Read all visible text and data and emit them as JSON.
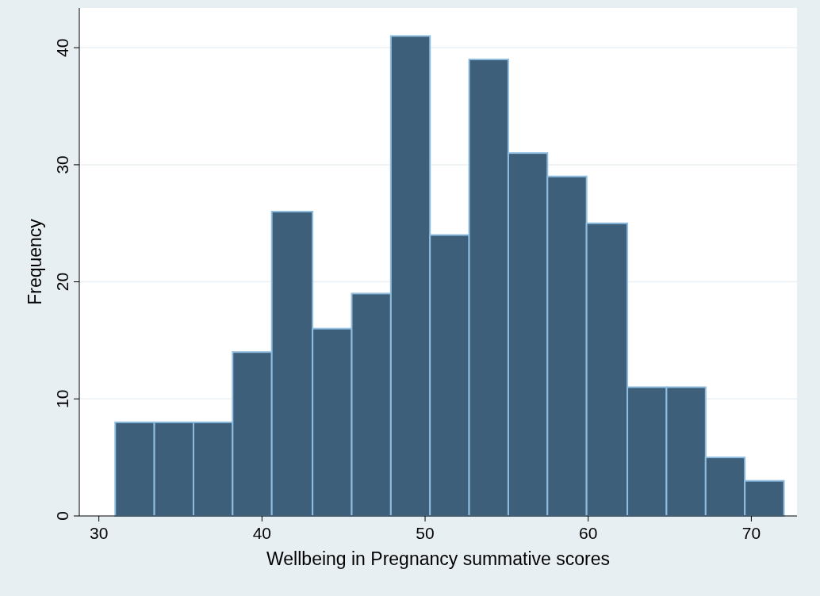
{
  "chart_data": {
    "type": "histogram",
    "xlabel": "Wellbeing in Pregnancy summative scores",
    "ylabel": "Frequency",
    "bins": [
      31,
      33.4,
      35.8,
      38.2,
      40.6,
      43.1,
      45.5,
      47.9,
      50.3,
      52.7,
      55.1,
      57.5,
      59.9,
      62.4,
      64.8,
      67.2,
      69.6,
      72
    ],
    "values": [
      8,
      8,
      8,
      14,
      26,
      16,
      19,
      41,
      24,
      39,
      31,
      29,
      25,
      11,
      11,
      5,
      3
    ],
    "color": "#3d5f7a",
    "xlim": [
      28.8,
      72.8
    ],
    "xticks": [
      30,
      40,
      50,
      60,
      70
    ],
    "ylim": [
      0,
      43.4
    ],
    "yticks": [
      0,
      10,
      20,
      30,
      40
    ],
    "grid": "y"
  }
}
